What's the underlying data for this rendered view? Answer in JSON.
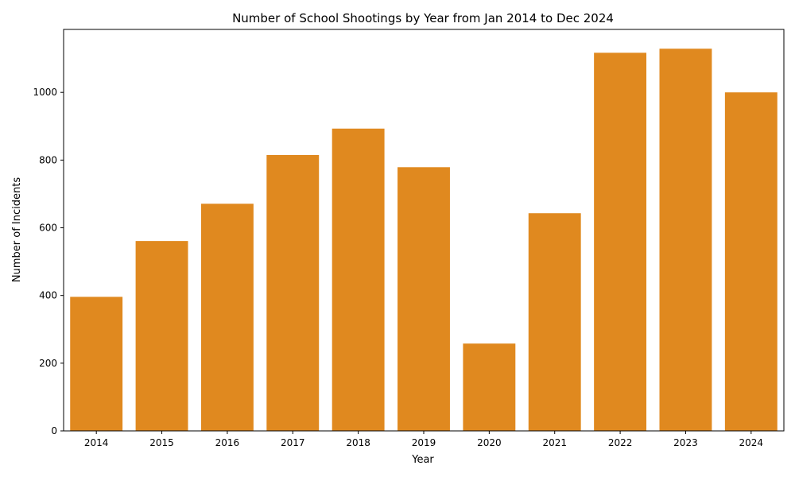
{
  "chart_data": {
    "type": "bar",
    "title": "Number of School Shootings by Year from Jan 2014 to Dec 2024",
    "xlabel": "Year",
    "ylabel": "Number of Incidents",
    "categories": [
      "2014",
      "2015",
      "2016",
      "2017",
      "2018",
      "2019",
      "2020",
      "2021",
      "2022",
      "2023",
      "2024"
    ],
    "values": [
      396,
      561,
      671,
      815,
      893,
      779,
      258,
      643,
      1117,
      1129,
      1000
    ],
    "ylim": [
      0,
      1186
    ],
    "yticks": [
      0,
      200,
      400,
      600,
      800,
      1000
    ],
    "grid": false,
    "bar_color": "#e0891f"
  }
}
